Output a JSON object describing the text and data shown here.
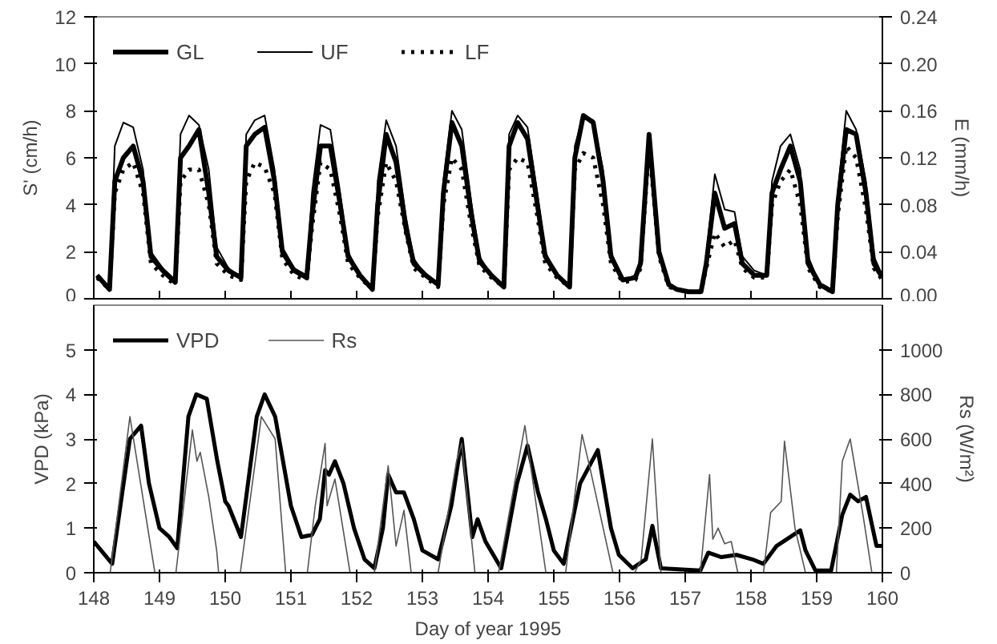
{
  "chart_data": [
    {
      "type": "line",
      "xlim": [
        148,
        160
      ],
      "xticks": [
        148,
        149,
        150,
        151,
        152,
        153,
        154,
        155,
        156,
        157,
        158,
        159,
        160
      ],
      "ylim": [
        0,
        12
      ],
      "yticks": [
        0,
        2,
        4,
        6,
        8,
        10,
        12
      ],
      "y2lim": [
        0,
        0.24
      ],
      "y2ticks": [
        {
          "value": 0,
          "label": "0.00"
        },
        {
          "value": 0.04,
          "label": "0.04"
        },
        {
          "value": 0.08,
          "label": "0.08"
        },
        {
          "value": 0.12,
          "label": "0.12"
        },
        {
          "value": 0.16,
          "label": "0.16"
        },
        {
          "value": 0.2,
          "label": "0.20"
        },
        {
          "value": 0.24,
          "label": "0.24"
        }
      ],
      "ylabel": "S' (cm/h)",
      "y2label": "E (mm/h)",
      "tick_labels": "y",
      "legend": "top left",
      "grid": false,
      "x": [
        148.05,
        148.24,
        148.32,
        148.45,
        148.6,
        148.75,
        148.87,
        149.05,
        149.24,
        149.32,
        149.45,
        149.6,
        149.75,
        149.87,
        150.05,
        150.24,
        150.32,
        150.45,
        150.6,
        150.75,
        150.87,
        151.05,
        151.24,
        151.32,
        151.45,
        151.6,
        151.75,
        151.87,
        152.05,
        152.24,
        152.32,
        152.45,
        152.6,
        152.75,
        152.87,
        153.05,
        153.24,
        153.32,
        153.45,
        153.6,
        153.75,
        153.87,
        154.05,
        154.24,
        154.32,
        154.45,
        154.6,
        154.75,
        154.87,
        155.05,
        155.24,
        155.32,
        155.45,
        155.6,
        155.75,
        155.87,
        156.05,
        156.24,
        156.32,
        156.45,
        156.6,
        156.75,
        156.87,
        157.05,
        157.24,
        157.32,
        157.45,
        157.6,
        157.75,
        157.87,
        158.05,
        158.24,
        158.32,
        158.45,
        158.6,
        158.75,
        158.87,
        159.05,
        159.24,
        159.32,
        159.45,
        159.6,
        159.75,
        159.87,
        160.0
      ],
      "series": [
        {
          "name": "GL",
          "color": "#000000",
          "line_style": "solid",
          "values": [
            1.0,
            0.4,
            5.0,
            6.0,
            6.5,
            5.0,
            1.8,
            1.2,
            0.7,
            6.0,
            6.5,
            7.2,
            4.5,
            1.8,
            1.2,
            0.9,
            6.5,
            7.0,
            7.3,
            5.0,
            2.0,
            1.2,
            0.9,
            3.5,
            6.5,
            6.5,
            4.0,
            1.8,
            1.0,
            0.4,
            4.0,
            7.0,
            5.8,
            3.0,
            1.5,
            1.0,
            0.6,
            4.5,
            7.5,
            6.5,
            3.5,
            1.6,
            1.0,
            0.5,
            6.5,
            7.5,
            6.8,
            4.0,
            1.8,
            1.0,
            0.5,
            6.0,
            7.8,
            7.5,
            5.0,
            1.8,
            0.8,
            0.9,
            1.5,
            7.0,
            2.0,
            0.6,
            0.4,
            0.3,
            0.3,
            1.5,
            4.5,
            3.0,
            3.2,
            1.5,
            1.0,
            1.0,
            4.5,
            5.5,
            6.5,
            5.0,
            1.5,
            0.6,
            0.3,
            4.0,
            7.2,
            7.0,
            4.5,
            1.5,
            0.9
          ]
        },
        {
          "name": "UF",
          "color": "#000000",
          "line_style": "solid",
          "values": [
            1.0,
            0.4,
            6.5,
            7.5,
            7.3,
            5.5,
            2.0,
            1.3,
            0.8,
            7.0,
            7.8,
            7.4,
            5.5,
            2.2,
            1.3,
            0.9,
            7.0,
            7.6,
            7.8,
            5.5,
            2.2,
            1.3,
            1.0,
            4.5,
            7.4,
            7.2,
            4.5,
            2.0,
            1.0,
            0.5,
            5.0,
            7.6,
            6.5,
            3.5,
            1.7,
            1.0,
            0.6,
            5.0,
            8.0,
            7.2,
            4.0,
            1.8,
            1.0,
            0.5,
            7.0,
            7.8,
            7.3,
            4.5,
            2.0,
            1.0,
            0.6,
            6.5,
            7.8,
            7.6,
            5.5,
            2.0,
            0.8,
            1.0,
            1.7,
            7.0,
            2.2,
            0.7,
            0.4,
            0.3,
            0.3,
            1.8,
            5.3,
            3.8,
            3.7,
            1.8,
            1.2,
            1.0,
            5.0,
            6.5,
            7.0,
            5.5,
            1.8,
            0.6,
            0.3,
            4.5,
            8.0,
            7.2,
            5.0,
            1.8,
            1.0
          ]
        },
        {
          "name": "LF",
          "color": "#000000",
          "line_style": "dotted",
          "values": [
            0.9,
            0.4,
            4.5,
            5.5,
            5.8,
            4.5,
            1.5,
            1.0,
            0.6,
            5.0,
            5.5,
            5.5,
            4.0,
            1.5,
            1.0,
            0.8,
            5.0,
            5.8,
            5.6,
            4.5,
            1.7,
            1.0,
            0.8,
            3.0,
            5.8,
            5.5,
            3.5,
            1.5,
            0.9,
            0.4,
            3.5,
            5.8,
            5.0,
            2.8,
            1.3,
            0.9,
            0.5,
            4.0,
            6.0,
            5.5,
            3.0,
            1.4,
            0.9,
            0.5,
            5.5,
            6.0,
            5.8,
            3.5,
            1.5,
            0.9,
            0.5,
            5.5,
            6.2,
            6.0,
            4.0,
            1.5,
            0.7,
            0.8,
            1.3,
            6.5,
            1.8,
            0.5,
            0.4,
            0.3,
            0.3,
            1.3,
            2.8,
            2.2,
            2.5,
            1.3,
            0.9,
            0.9,
            4.0,
            5.0,
            5.5,
            4.0,
            1.3,
            0.5,
            0.3,
            3.5,
            6.5,
            6.0,
            3.8,
            1.3,
            0.8
          ]
        }
      ]
    },
    {
      "type": "line",
      "xlim": [
        148,
        160
      ],
      "xticks": [
        148,
        149,
        150,
        151,
        152,
        153,
        154,
        155,
        156,
        157,
        158,
        159,
        160
      ],
      "ylim": [
        0,
        6
      ],
      "yticks": [
        0,
        1,
        2,
        3,
        4,
        5
      ],
      "y2lim": [
        0,
        1200
      ],
      "y2ticks": [
        0,
        200,
        400,
        600,
        800,
        1000
      ],
      "xlabel": "Day of year 1995",
      "ylabel": "VPD (kPa)",
      "y2label": "Rs (W/m²)",
      "legend": "top left",
      "grid": false,
      "series": [
        {
          "name": "VPD",
          "color": "#000000",
          "line_style": "solid",
          "x": [
            148.0,
            148.28,
            148.55,
            148.72,
            148.84,
            149.0,
            149.15,
            149.27,
            149.44,
            149.56,
            149.72,
            149.88,
            150.0,
            150.05,
            150.24,
            150.48,
            150.6,
            150.76,
            151.0,
            151.16,
            151.32,
            151.44,
            151.52,
            151.58,
            151.67,
            151.8,
            151.96,
            152.12,
            152.27,
            152.4,
            152.48,
            152.6,
            152.72,
            152.87,
            153.0,
            153.24,
            153.44,
            153.6,
            153.76,
            153.84,
            153.96,
            154.2,
            154.44,
            154.6,
            154.76,
            154.88,
            155.0,
            155.15,
            155.4,
            155.67,
            155.87,
            155.99,
            156.2,
            156.4,
            156.5,
            156.63,
            157.23,
            157.35,
            157.55,
            157.78,
            158.02,
            158.19,
            158.39,
            158.75,
            158.83,
            158.98,
            159.22,
            159.39,
            159.51,
            159.63,
            159.75,
            159.91,
            160.0
          ],
          "values": [
            0.7,
            0.2,
            3.0,
            3.3,
            2.0,
            1.0,
            0.8,
            0.55,
            3.5,
            4.0,
            3.9,
            2.5,
            1.6,
            1.5,
            0.8,
            3.5,
            4.0,
            3.5,
            1.5,
            0.8,
            0.85,
            1.2,
            2.3,
            2.2,
            2.5,
            2.0,
            1.0,
            0.3,
            0.1,
            1.0,
            2.2,
            1.8,
            1.8,
            1.2,
            0.5,
            0.3,
            1.5,
            3.0,
            0.8,
            1.2,
            0.7,
            0.1,
            2.0,
            2.85,
            1.8,
            1.2,
            0.5,
            0.2,
            2.0,
            2.75,
            1.0,
            0.4,
            0.1,
            0.3,
            1.05,
            0.1,
            0.05,
            0.45,
            0.35,
            0.4,
            0.3,
            0.2,
            0.6,
            0.95,
            0.5,
            0.05,
            0.05,
            1.3,
            1.75,
            1.6,
            1.7,
            0.6,
            0.6
          ]
        },
        {
          "name": "Rs",
          "color": "#555555",
          "line_style": "solid",
          "axis": "y2",
          "x": [
            148.25,
            148.55,
            148.93,
            149.25,
            149.5,
            149.57,
            149.62,
            149.75,
            149.87,
            149.9,
            150.23,
            150.55,
            150.76,
            150.92,
            151.25,
            151.37,
            151.52,
            151.55,
            151.67,
            151.9,
            152.27,
            152.48,
            152.6,
            152.72,
            152.83,
            153.24,
            153.52,
            153.6,
            153.8,
            154.16,
            154.56,
            154.88,
            155.18,
            155.43,
            155.55,
            155.9,
            156.23,
            156.33,
            156.5,
            156.63,
            157.23,
            157.37,
            157.42,
            157.5,
            157.6,
            157.7,
            157.8,
            158.19,
            158.3,
            158.46,
            158.51,
            158.58,
            158.67,
            158.83,
            159.3,
            159.39,
            159.51,
            159.71,
            159.84
          ],
          "values": [
            0,
            700,
            0,
            0,
            640,
            500,
            540,
            340,
            100,
            0,
            0,
            700,
            600,
            0,
            0,
            300,
            580,
            300,
            420,
            0,
            0,
            480,
            120,
            280,
            0,
            0,
            500,
            580,
            0,
            0,
            660,
            0,
            0,
            620,
            470,
            0,
            0,
            60,
            600,
            0,
            0,
            440,
            150,
            200,
            130,
            140,
            0,
            0,
            270,
            320,
            590,
            420,
            200,
            0,
            0,
            500,
            600,
            250,
            0
          ]
        }
      ]
    }
  ]
}
